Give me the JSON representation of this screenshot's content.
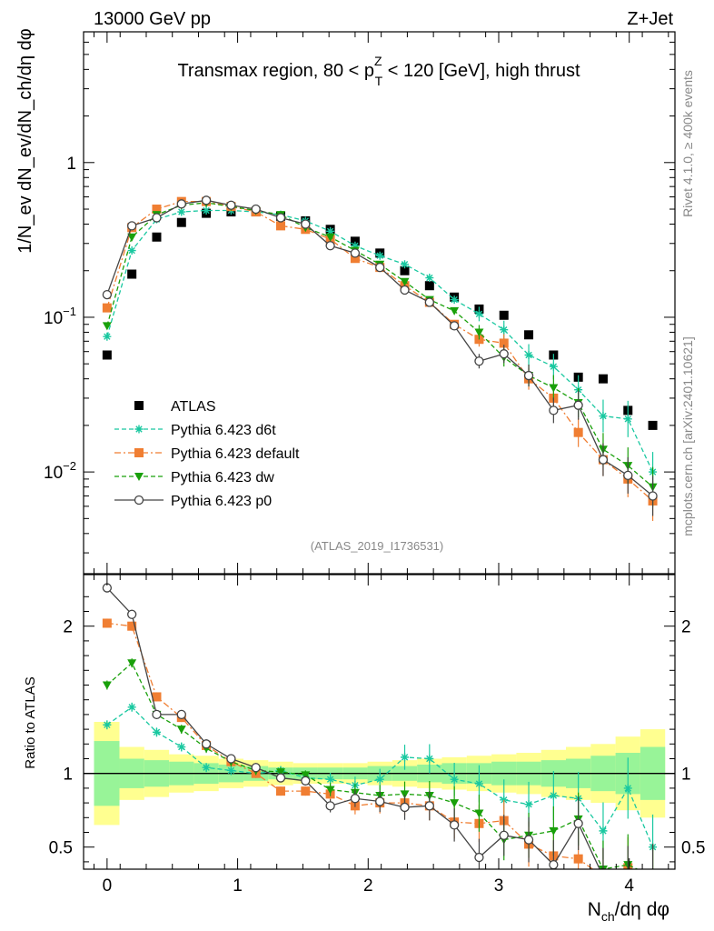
{
  "header": {
    "left": "13000 GeV pp",
    "right": "Z+Jet"
  },
  "side_labels": {
    "rivet": "Rivet 4.1.0, ≥ 400k events",
    "mcplots": "mcplots.cern.ch [arXiv:2401.10621]"
  },
  "chart_data": [
    {
      "type": "scatter",
      "panel": "main",
      "title_parts": {
        "prefix": "Transmax region, 80 < p",
        "sup": "Z",
        "sub": "T",
        "suffix": " < 120 [GeV], high thrust"
      },
      "analysis_id": "(ATLAS_2019_I1736531)",
      "ylabel": "1/N_ev dN_ev/dN_ch/dη dφ",
      "yscale": "log",
      "ylim": [
        0.0022,
        7
      ],
      "xlim": [
        -0.18,
        4.35
      ],
      "ytick_labels": [
        {
          "value": 1,
          "label": "1"
        },
        {
          "value": 0.1,
          "label": "10",
          "exp": "−1"
        },
        {
          "value": 0.01,
          "label": "10",
          "exp": "−2"
        }
      ],
      "x": [
        0.0,
        0.19,
        0.38,
        0.57,
        0.76,
        0.95,
        1.14,
        1.33,
        1.52,
        1.71,
        1.9,
        2.09,
        2.28,
        2.47,
        2.66,
        2.85,
        3.04,
        3.23,
        3.42,
        3.61,
        3.8,
        3.99,
        4.18
      ],
      "series": [
        {
          "name": "ATLAS",
          "color": "#000000",
          "marker": "square",
          "line": "none",
          "values": [
            0.057,
            0.19,
            0.33,
            0.41,
            0.47,
            0.48,
            0.48,
            0.45,
            0.42,
            0.37,
            0.31,
            0.26,
            0.2,
            0.16,
            0.135,
            0.113,
            0.103,
            0.077,
            0.057,
            0.041,
            0.04,
            0.025,
            0.02
          ]
        },
        {
          "name": "Pythia 6.423 d6t",
          "color": "#19c8a0",
          "marker": "star",
          "line": "dashed",
          "values": [
            0.075,
            0.27,
            0.43,
            0.48,
            0.49,
            0.49,
            0.48,
            0.46,
            0.42,
            0.36,
            0.29,
            0.25,
            0.22,
            0.18,
            0.13,
            0.105,
            0.083,
            0.057,
            0.048,
            0.034,
            0.023,
            0.022,
            0.01
          ]
        },
        {
          "name": "Pythia 6.423 default",
          "color": "#f07e32",
          "marker": "square",
          "line": "dashdot",
          "values": [
            0.115,
            0.38,
            0.5,
            0.56,
            0.56,
            0.52,
            0.48,
            0.39,
            0.37,
            0.32,
            0.24,
            0.21,
            0.16,
            0.125,
            0.09,
            0.072,
            0.068,
            0.04,
            0.03,
            0.018,
            0.012,
            0.009,
            0.0065
          ]
        },
        {
          "name": "Pythia 6.423 dw",
          "color": "#19a00a",
          "marker": "triangle-down",
          "line": "dashed",
          "values": [
            0.088,
            0.33,
            0.46,
            0.53,
            0.55,
            0.52,
            0.49,
            0.46,
            0.38,
            0.33,
            0.27,
            0.22,
            0.17,
            0.13,
            0.11,
            0.08,
            0.055,
            0.042,
            0.035,
            0.028,
            0.014,
            0.011,
            0.008
          ]
        },
        {
          "name": "Pythia 6.423 p0",
          "color": "#444444",
          "marker": "circle-open",
          "line": "solid",
          "values": [
            0.14,
            0.39,
            0.44,
            0.54,
            0.57,
            0.53,
            0.5,
            0.44,
            0.4,
            0.29,
            0.26,
            0.21,
            0.15,
            0.125,
            0.088,
            0.052,
            0.058,
            0.042,
            0.025,
            0.027,
            0.012,
            0.0095,
            0.007
          ]
        }
      ],
      "legend_position": "lower-left"
    },
    {
      "type": "line",
      "panel": "ratio",
      "ylabel": "Ratio to ATLAS",
      "xlabel_parts": {
        "n": "N",
        "sub": "ch",
        "rest": "/dη dφ"
      },
      "ylim": [
        0.35,
        2.35
      ],
      "xlim": [
        -0.18,
        4.35
      ],
      "yticks": [
        0.5,
        1,
        2
      ],
      "ytick_labels": [
        "0.5",
        "1",
        "2"
      ],
      "xticks": [
        0,
        1,
        2,
        3,
        4
      ],
      "xtick_labels": [
        "0",
        "1",
        "2",
        "3",
        "4"
      ],
      "reference_line": 1,
      "bands": {
        "x_edges": [
          -0.1,
          0.095,
          0.285,
          0.475,
          0.665,
          0.855,
          1.045,
          1.235,
          1.425,
          1.615,
          1.805,
          1.995,
          2.185,
          2.375,
          2.565,
          2.755,
          2.945,
          3.135,
          3.325,
          3.515,
          3.705,
          3.895,
          4.085,
          4.275
        ],
        "yellow_half_width": [
          0.35,
          0.18,
          0.16,
          0.13,
          0.12,
          0.1,
          0.09,
          0.08,
          0.07,
          0.07,
          0.07,
          0.08,
          0.09,
          0.1,
          0.11,
          0.12,
          0.13,
          0.14,
          0.16,
          0.18,
          0.2,
          0.25,
          0.3
        ],
        "green_half_width": [
          0.22,
          0.1,
          0.09,
          0.08,
          0.07,
          0.06,
          0.05,
          0.04,
          0.04,
          0.04,
          0.04,
          0.05,
          0.05,
          0.06,
          0.07,
          0.07,
          0.08,
          0.08,
          0.09,
          0.1,
          0.12,
          0.14,
          0.18
        ],
        "yellow_color": "#ffff90",
        "green_color": "#98f498"
      },
      "series": [
        {
          "name": "Pythia 6.423 d6t",
          "color": "#19c8a0",
          "marker": "star",
          "line": "dashed",
          "values": [
            1.33,
            1.45,
            1.28,
            1.18,
            1.04,
            1.02,
            1.0,
            1.02,
            0.97,
            0.96,
            0.92,
            0.96,
            1.11,
            1.1,
            0.96,
            0.93,
            0.82,
            0.79,
            0.85,
            0.83,
            0.61,
            0.9,
            0.5
          ]
        },
        {
          "name": "Pythia 6.423 default",
          "color": "#f07e32",
          "marker": "square",
          "line": "dashdot",
          "values": [
            2.02,
            2.0,
            1.52,
            1.38,
            1.19,
            1.08,
            1.0,
            0.88,
            0.88,
            0.86,
            0.78,
            0.8,
            0.8,
            0.78,
            0.67,
            0.66,
            0.68,
            0.52,
            0.44,
            0.42,
            0.3,
            0.36,
            0.3
          ]
        },
        {
          "name": "Pythia 6.423 dw",
          "color": "#19a00a",
          "marker": "triangle-down",
          "line": "dashed",
          "values": [
            1.6,
            1.75,
            1.4,
            1.3,
            1.17,
            1.08,
            1.02,
            1.01,
            0.99,
            0.89,
            0.87,
            0.85,
            0.86,
            0.85,
            0.8,
            0.73,
            0.55,
            0.58,
            0.61,
            0.69,
            0.35,
            0.38,
            0.3
          ]
        },
        {
          "name": "Pythia 6.423 p0",
          "color": "#444444",
          "marker": "circle-open",
          "line": "solid",
          "values": [
            2.26,
            2.08,
            1.4,
            1.4,
            1.2,
            1.1,
            1.04,
            0.97,
            0.95,
            0.78,
            0.83,
            0.81,
            0.77,
            0.78,
            0.65,
            0.43,
            0.58,
            0.55,
            0.38,
            0.66,
            0.3,
            0.3,
            0.3
          ]
        }
      ]
    }
  ]
}
